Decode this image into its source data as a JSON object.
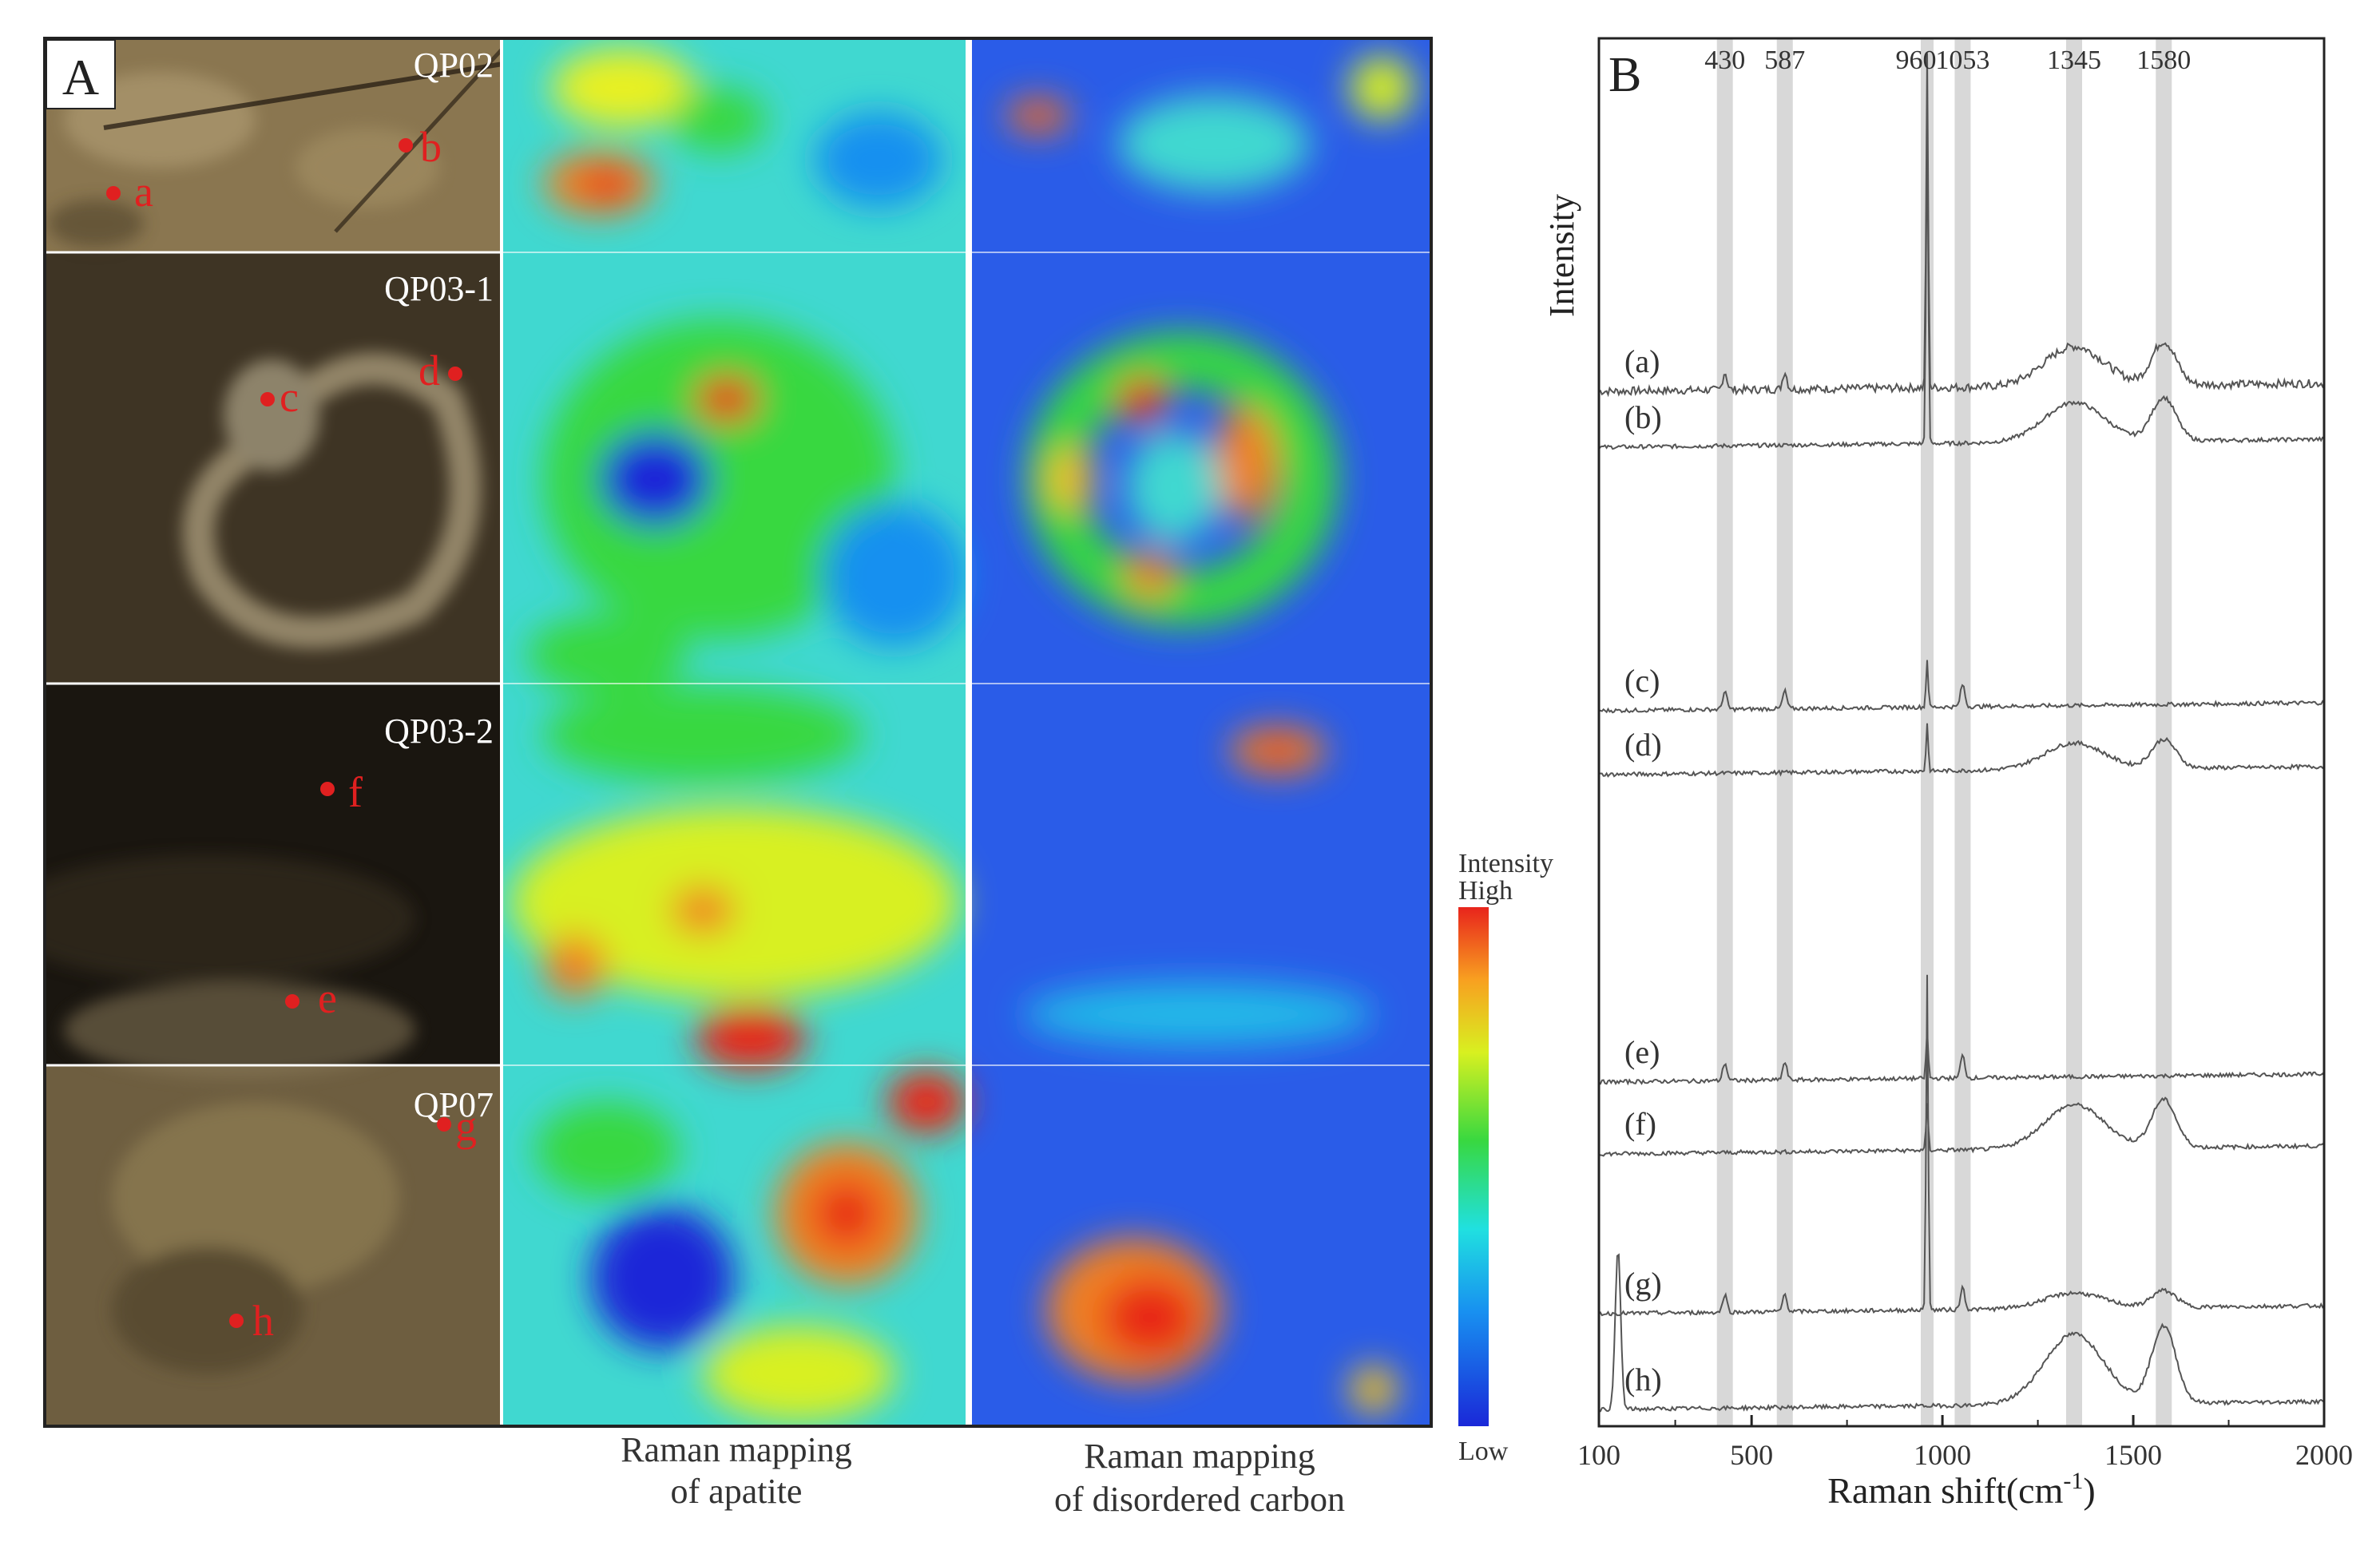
{
  "panel_a": {
    "label": "A",
    "samples": [
      {
        "id": "QP02",
        "points": [
          "a",
          "b"
        ]
      },
      {
        "id": "QP03-1",
        "points": [
          "c",
          "d"
        ]
      },
      {
        "id": "QP03-2",
        "points": [
          "f",
          "e"
        ]
      },
      {
        "id": "QP07",
        "points": [
          "g",
          "h"
        ]
      }
    ],
    "column_captions": {
      "apatite": [
        "Raman mapping",
        "of apatite"
      ],
      "carbon": [
        "Raman mapping",
        "of disordered carbon"
      ]
    },
    "colorbar": {
      "title": "Intensity",
      "high": "High",
      "low": "Low"
    },
    "colors": {
      "high": "#e8241c",
      "mid": "#38d840",
      "low": "#1a28d8",
      "point_marker": "#e02020"
    }
  },
  "panel_b": {
    "label": "B",
    "chart_data": {
      "type": "line",
      "xlabel_main": "Raman  shift(cm",
      "xlabel_sup": "-1",
      "xlabel_end": ")",
      "ylabel": "Intensity",
      "xlim": [
        100,
        2000
      ],
      "x_ticks": [
        "100",
        "500",
        "1000",
        "1500",
        "2000"
      ],
      "bands": [
        430,
        587,
        960,
        1053,
        1345,
        1580
      ],
      "band_labels": [
        "430",
        "587",
        "960",
        "1053",
        "1345",
        "1580"
      ],
      "series": [
        {
          "name": "(a)",
          "peaks": [
            430,
            587,
            960,
            1345,
            1580
          ]
        },
        {
          "name": "(b)",
          "peaks": [
            960,
            1345,
            1580
          ]
        },
        {
          "name": "(c)",
          "peaks": [
            430,
            587,
            960,
            1053
          ]
        },
        {
          "name": "(d)",
          "peaks": [
            960,
            1345,
            1580
          ]
        },
        {
          "name": "(e)",
          "peaks": [
            430,
            587,
            960,
            1053
          ]
        },
        {
          "name": "(f)",
          "peaks": [
            960,
            1345,
            1580
          ]
        },
        {
          "name": "(g)",
          "peaks": [
            430,
            587,
            960,
            1053,
            1345,
            1580
          ]
        },
        {
          "name": "(h)",
          "peaks": [
            1345,
            1580
          ]
        }
      ]
    }
  }
}
